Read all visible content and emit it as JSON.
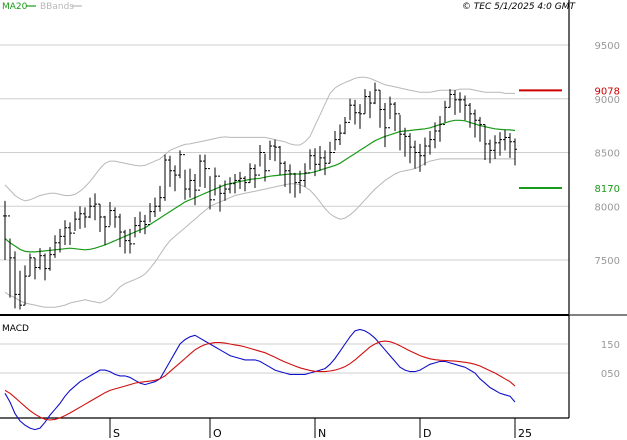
{
  "legend": {
    "ma_label": "MA20",
    "bb_label": "BBands"
  },
  "header": {
    "copyright": "© TEC 5/1/2025 4:0 GMT"
  },
  "colors": {
    "ma": "#1a9a1a",
    "bbands": "#b8b8b8",
    "macd": "#1010c8",
    "signal": "#d01010",
    "resistance": "#cc0000",
    "support": "#1a9a1a",
    "bars": "#000000",
    "grid": "#cfcfcf",
    "axis": "#000000",
    "axis_text": "#999999"
  },
  "chart_data": [
    {
      "type": "bar",
      "title": "",
      "y_ticks": [
        "9500",
        "9000",
        "8500",
        "8000",
        "7500"
      ],
      "ylim": [
        7000,
        9700
      ],
      "x_ticks": [
        "S",
        "O",
        "N",
        "D",
        "25"
      ],
      "x_tick_index": [
        21,
        41,
        62,
        83,
        102
      ],
      "levels": [
        {
          "label": "9078",
          "value": 9078,
          "kind": "resistance"
        },
        {
          "label": "8170",
          "value": 8170,
          "kind": "support"
        }
      ],
      "close": [
        7910,
        7520,
        7180,
        7080,
        7350,
        7520,
        7430,
        7540,
        7420,
        7550,
        7660,
        7720,
        7800,
        7750,
        7880,
        7930,
        7900,
        8000,
        8020,
        7900,
        7810,
        7960,
        7900,
        7760,
        7680,
        7650,
        7820,
        7860,
        7830,
        7950,
        8000,
        8080,
        8430,
        8330,
        8290,
        8480,
        8160,
        8240,
        8150,
        8420,
        8350,
        8060,
        8280,
        8120,
        8160,
        8210,
        8240,
        8260,
        8220,
        8350,
        8290,
        8500,
        8330,
        8560,
        8550,
        8400,
        8330,
        8300,
        8220,
        8240,
        8310,
        8470,
        8390,
        8450,
        8400,
        8500,
        8620,
        8680,
        8780,
        8940,
        8870,
        8860,
        9020,
        8960,
        9080,
        8900,
        8730,
        8950,
        8860,
        8670,
        8650,
        8550,
        8500,
        8470,
        8560,
        8620,
        8700,
        8760,
        8920,
        9040,
        8990,
        8990,
        8940,
        8860,
        8800,
        8760,
        8580,
        8520,
        8590,
        8620,
        8640,
        8600,
        8530
      ],
      "high": [
        8050,
        7700,
        7580,
        7400,
        7450,
        7560,
        7520,
        7610,
        7560,
        7620,
        7730,
        7790,
        7870,
        7850,
        7950,
        8000,
        7990,
        8080,
        8120,
        8020,
        7910,
        8040,
        7990,
        7930,
        7780,
        7790,
        7900,
        7950,
        7920,
        8030,
        8080,
        8190,
        8480,
        8470,
        8380,
        8520,
        8340,
        8350,
        8300,
        8480,
        8480,
        8280,
        8360,
        8200,
        8240,
        8270,
        8300,
        8320,
        8280,
        8400,
        8390,
        8570,
        8490,
        8610,
        8620,
        8560,
        8420,
        8390,
        8310,
        8330,
        8400,
        8530,
        8540,
        8560,
        8520,
        8600,
        8700,
        8760,
        8830,
        9000,
        8990,
        8950,
        9090,
        9070,
        9150,
        9080,
        8960,
        9020,
        8970,
        8850,
        8730,
        8680,
        8610,
        8580,
        8640,
        8700,
        8780,
        8840,
        8980,
        9090,
        9080,
        9060,
        9030,
        8960,
        8900,
        8830,
        8760,
        8620,
        8660,
        8690,
        8710,
        8680,
        8630
      ],
      "low": [
        7500,
        7150,
        7050,
        7040,
        7080,
        7350,
        7320,
        7410,
        7310,
        7400,
        7520,
        7570,
        7640,
        7640,
        7770,
        7790,
        7800,
        7890,
        7870,
        7760,
        7640,
        7820,
        7800,
        7620,
        7560,
        7560,
        7710,
        7750,
        7740,
        7850,
        7900,
        7950,
        8050,
        8180,
        8140,
        8260,
        8060,
        8080,
        8010,
        8180,
        8170,
        7970,
        8100,
        7950,
        8050,
        8120,
        8120,
        8160,
        8140,
        8220,
        8170,
        8370,
        8230,
        8430,
        8420,
        8290,
        8180,
        8120,
        8080,
        8120,
        8180,
        8340,
        8280,
        8330,
        8290,
        8400,
        8520,
        8570,
        8670,
        8800,
        8760,
        8720,
        8860,
        8820,
        8950,
        8730,
        8550,
        8810,
        8700,
        8520,
        8460,
        8400,
        8350,
        8320,
        8380,
        8480,
        8540,
        8600,
        8780,
        8920,
        8850,
        8870,
        8800,
        8730,
        8640,
        8600,
        8430,
        8400,
        8440,
        8470,
        8520,
        8450,
        8380
      ],
      "ma20": [
        7700,
        7660,
        7630,
        7600,
        7580,
        7575,
        7575,
        7580,
        7585,
        7590,
        7595,
        7600,
        7605,
        7610,
        7605,
        7600,
        7595,
        7600,
        7610,
        7625,
        7640,
        7660,
        7680,
        7700,
        7720,
        7740,
        7760,
        7780,
        7800,
        7830,
        7860,
        7890,
        7920,
        7950,
        7980,
        8010,
        8040,
        8060,
        8080,
        8100,
        8120,
        8140,
        8160,
        8180,
        8200,
        8210,
        8220,
        8230,
        8240,
        8250,
        8255,
        8260,
        8270,
        8280,
        8285,
        8290,
        8295,
        8300,
        8300,
        8300,
        8305,
        8310,
        8320,
        8335,
        8350,
        8365,
        8380,
        8400,
        8430,
        8460,
        8490,
        8520,
        8550,
        8580,
        8610,
        8630,
        8650,
        8665,
        8680,
        8695,
        8700,
        8705,
        8710,
        8715,
        8720,
        8730,
        8745,
        8760,
        8775,
        8790,
        8800,
        8800,
        8795,
        8780,
        8765,
        8750,
        8740,
        8730,
        8720,
        8715,
        8712,
        8710,
        8705
      ],
      "bb_upper": [
        8200,
        8150,
        8100,
        8070,
        8050,
        8060,
        8080,
        8100,
        8110,
        8120,
        8120,
        8110,
        8100,
        8100,
        8110,
        8140,
        8180,
        8230,
        8290,
        8350,
        8400,
        8420,
        8420,
        8410,
        8400,
        8390,
        8380,
        8375,
        8380,
        8400,
        8420,
        8440,
        8480,
        8520,
        8540,
        8560,
        8575,
        8580,
        8590,
        8600,
        8610,
        8620,
        8630,
        8640,
        8645,
        8640,
        8640,
        8640,
        8640,
        8640,
        8640,
        8640,
        8640,
        8630,
        8620,
        8610,
        8600,
        8580,
        8570,
        8570,
        8600,
        8650,
        8750,
        8850,
        8950,
        9050,
        9100,
        9130,
        9150,
        9170,
        9190,
        9200,
        9200,
        9190,
        9170,
        9150,
        9130,
        9120,
        9110,
        9100,
        9090,
        9080,
        9070,
        9060,
        9060,
        9060,
        9070,
        9080,
        9080,
        9080,
        9080,
        9090,
        9090,
        9090,
        9080,
        9070,
        9060,
        9060,
        9060,
        9060,
        9050,
        9050,
        9050
      ],
      "bb_lower": [
        7200,
        7170,
        7150,
        7120,
        7100,
        7090,
        7080,
        7070,
        7060,
        7060,
        7060,
        7070,
        7080,
        7100,
        7110,
        7120,
        7130,
        7120,
        7110,
        7100,
        7120,
        7150,
        7200,
        7250,
        7280,
        7300,
        7320,
        7340,
        7370,
        7420,
        7480,
        7550,
        7620,
        7680,
        7720,
        7760,
        7800,
        7840,
        7880,
        7920,
        7960,
        8000,
        8020,
        8040,
        8060,
        8080,
        8100,
        8110,
        8120,
        8130,
        8140,
        8150,
        8160,
        8170,
        8180,
        8190,
        8200,
        8210,
        8210,
        8200,
        8180,
        8150,
        8100,
        8040,
        7980,
        7930,
        7900,
        7880,
        7890,
        7920,
        7960,
        8010,
        8060,
        8110,
        8160,
        8200,
        8240,
        8270,
        8300,
        8320,
        8330,
        8340,
        8350,
        8370,
        8400,
        8420,
        8430,
        8440,
        8440,
        8440,
        8440,
        8440,
        8440,
        8440,
        8440,
        8440,
        8440,
        8440,
        8440,
        8440,
        8440,
        8440,
        8440
      ]
    },
    {
      "type": "line",
      "title": "MACD",
      "y_ticks": [
        "150",
        "050"
      ],
      "ylim": [
        -150,
        250
      ],
      "series": [
        {
          "key": "macd",
          "values": [
            -20,
            -50,
            -90,
            -115,
            -130,
            -140,
            -145,
            -140,
            -120,
            -95,
            -75,
            -55,
            -30,
            -10,
            5,
            20,
            30,
            40,
            50,
            60,
            60,
            55,
            45,
            40,
            40,
            35,
            25,
            15,
            10,
            15,
            20,
            30,
            60,
            90,
            120,
            150,
            165,
            175,
            180,
            170,
            160,
            150,
            140,
            130,
            120,
            110,
            105,
            100,
            95,
            95,
            95,
            90,
            80,
            70,
            60,
            55,
            50,
            45,
            45,
            45,
            45,
            50,
            55,
            60,
            65,
            80,
            100,
            125,
            150,
            175,
            195,
            200,
            195,
            185,
            170,
            150,
            130,
            110,
            90,
            70,
            60,
            55,
            55,
            60,
            70,
            80,
            85,
            90,
            90,
            85,
            80,
            75,
            70,
            60,
            50,
            30,
            15,
            0,
            -10,
            -20,
            -25,
            -30,
            -50
          ]
        },
        {
          "key": "signal",
          "values": [
            -10,
            -20,
            -35,
            -50,
            -65,
            -80,
            -92,
            -102,
            -110,
            -112,
            -110,
            -105,
            -97,
            -88,
            -78,
            -68,
            -58,
            -48,
            -38,
            -28,
            -18,
            -10,
            -5,
            0,
            5,
            10,
            15,
            18,
            20,
            22,
            25,
            30,
            40,
            55,
            70,
            85,
            100,
            115,
            130,
            140,
            148,
            152,
            155,
            155,
            153,
            150,
            147,
            144,
            140,
            135,
            130,
            125,
            120,
            112,
            104,
            96,
            88,
            81,
            74,
            68,
            63,
            59,
            56,
            55,
            55,
            57,
            60,
            65,
            72,
            82,
            95,
            110,
            125,
            140,
            150,
            158,
            160,
            158,
            152,
            144,
            135,
            126,
            118,
            110,
            104,
            99,
            96,
            94,
            93,
            92,
            91,
            89,
            87,
            84,
            80,
            74,
            66,
            58,
            50,
            40,
            30,
            20,
            5
          ]
        }
      ],
      "x_ticks": [
        "S",
        "O",
        "N",
        "D",
        "25"
      ]
    }
  ]
}
